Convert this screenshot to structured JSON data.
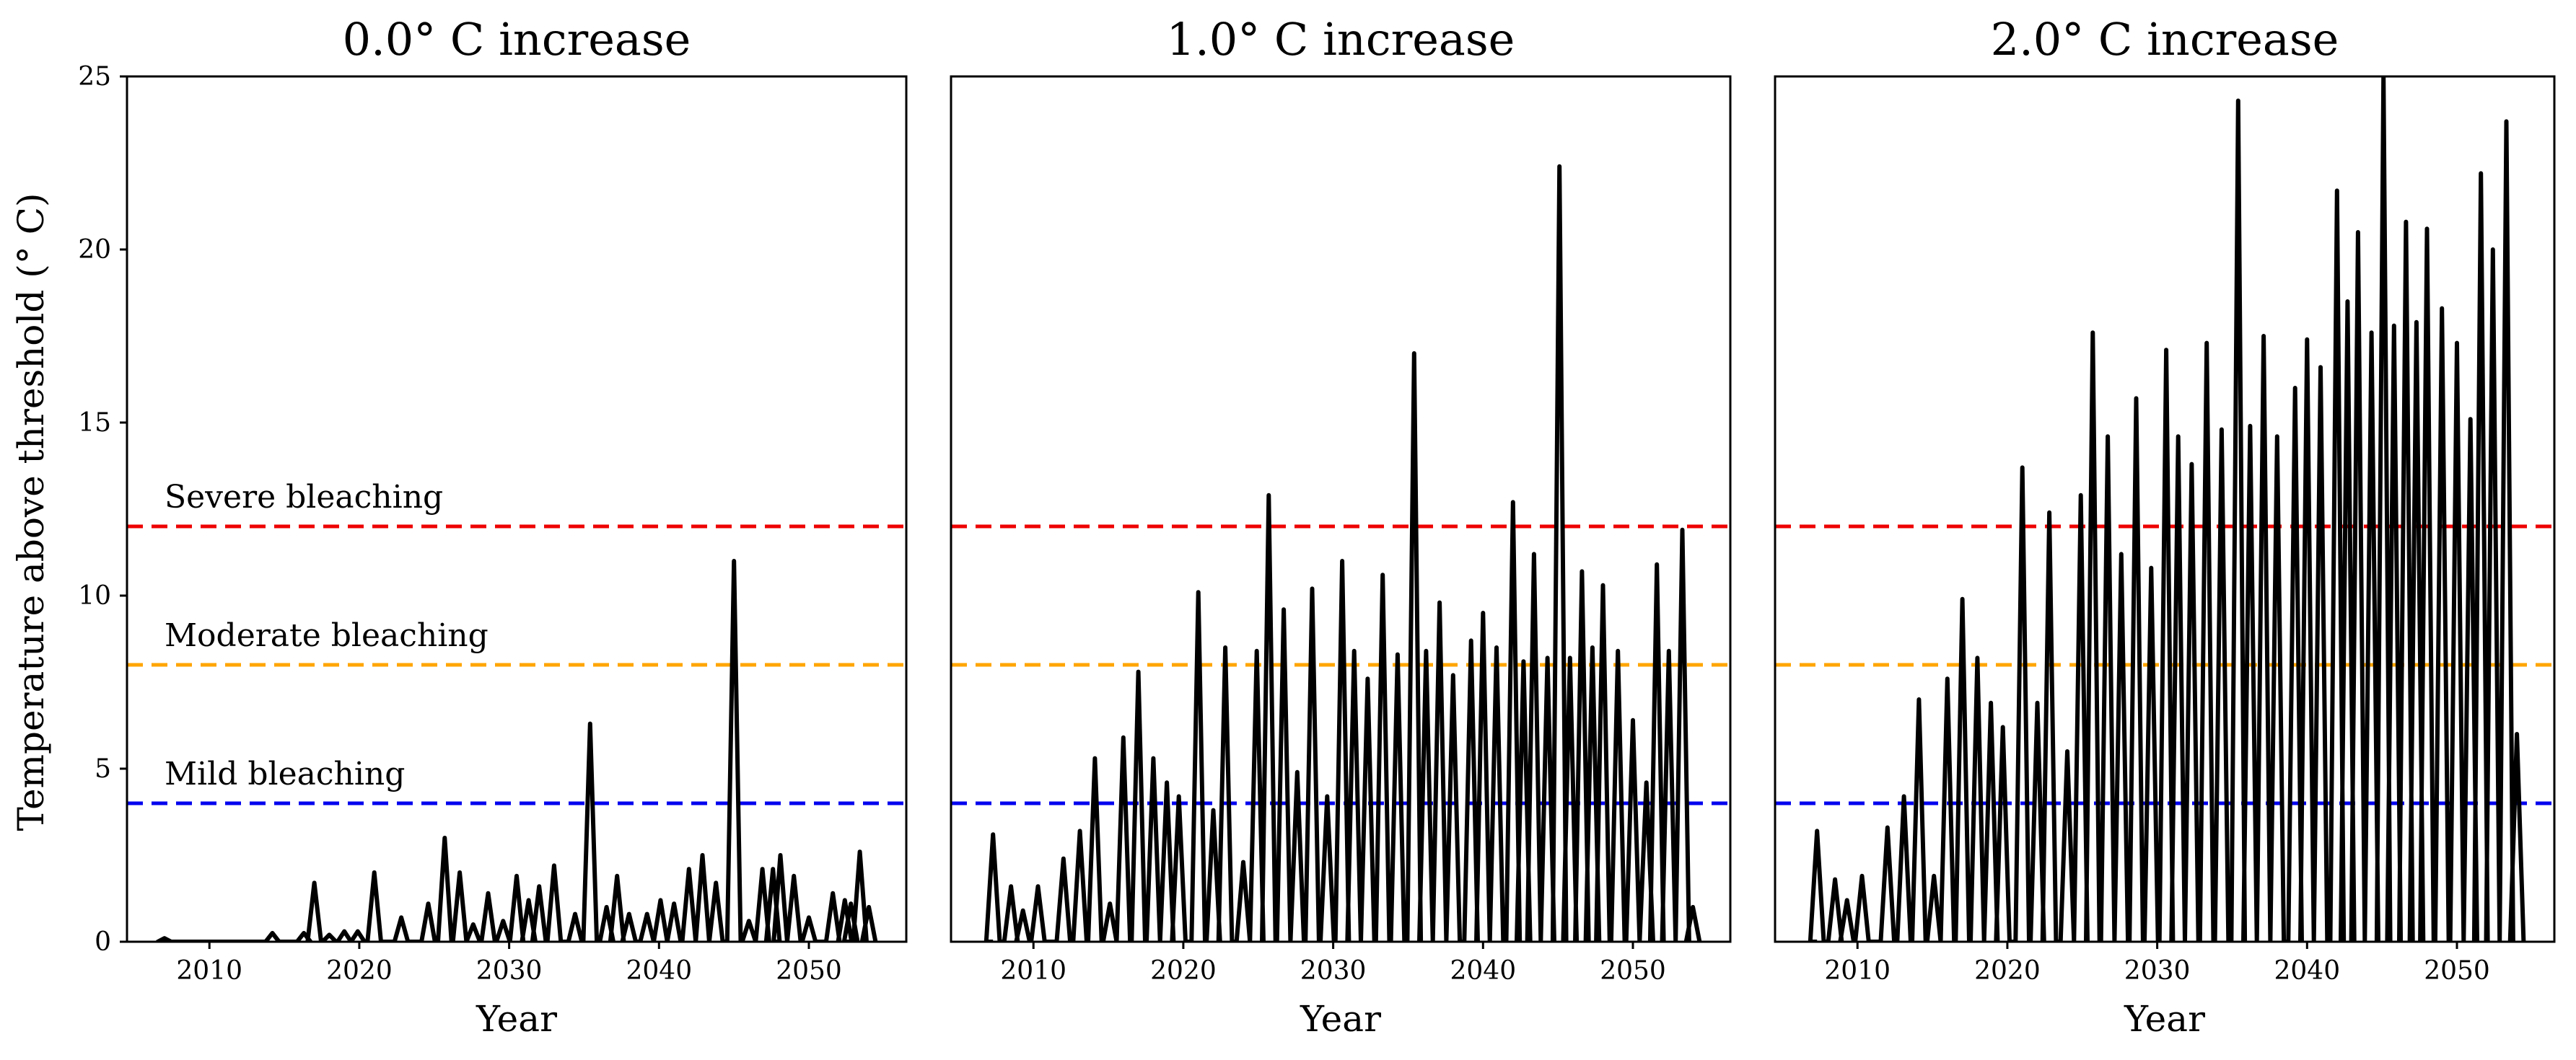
{
  "colors": {
    "mild": "#0000ee",
    "moderate": "#ffa500",
    "severe": "#ee0000",
    "series": "#000000"
  },
  "ylabel": "Temperature above threshold (° C)",
  "annotations": [
    {
      "key": "mild",
      "text": "Mild bleaching",
      "value": 4
    },
    {
      "key": "moderate",
      "text": "Moderate bleaching",
      "value": 8
    },
    {
      "key": "severe",
      "text": "Severe bleaching",
      "value": 12
    }
  ],
  "chart_data": [
    {
      "type": "line",
      "title": "0.0° C increase",
      "xlabel": "Year",
      "xlim": [
        2004.5,
        2056.5
      ],
      "ylim": [
        0,
        25
      ],
      "xticks": [
        2010,
        2020,
        2030,
        2040,
        2050
      ],
      "yticks": [
        0,
        5,
        10,
        15,
        20,
        25
      ],
      "thresholds": [
        4,
        8,
        12
      ],
      "series": [
        {
          "points": [
            [
              2007.0,
              0.1
            ],
            [
              2014.2,
              0.25
            ],
            [
              2016.3,
              0.25
            ],
            [
              2017.0,
              1.7
            ],
            [
              2018.0,
              0.2
            ],
            [
              2019.0,
              0.3
            ],
            [
              2019.9,
              0.3
            ],
            [
              2021.0,
              2.0
            ],
            [
              2022.8,
              0.7
            ],
            [
              2024.6,
              1.1
            ],
            [
              2025.7,
              3.0
            ],
            [
              2026.7,
              2.0
            ],
            [
              2027.6,
              0.5
            ],
            [
              2028.6,
              1.4
            ],
            [
              2029.6,
              0.6
            ],
            [
              2030.5,
              1.9
            ],
            [
              2031.3,
              1.2
            ],
            [
              2032.0,
              1.6
            ],
            [
              2033.0,
              2.2
            ],
            [
              2034.4,
              0.8
            ],
            [
              2035.4,
              6.3
            ],
            [
              2036.5,
              1.0
            ],
            [
              2037.2,
              1.9
            ],
            [
              2038.0,
              0.8
            ],
            [
              2039.2,
              0.8
            ],
            [
              2040.1,
              1.2
            ],
            [
              2041.0,
              1.1
            ],
            [
              2042.0,
              2.1
            ],
            [
              2042.9,
              2.5
            ],
            [
              2043.8,
              1.7
            ],
            [
              2045.0,
              11.0
            ],
            [
              2046.0,
              0.6
            ],
            [
              2046.9,
              2.1
            ],
            [
              2047.6,
              2.1
            ],
            [
              2048.1,
              2.5
            ],
            [
              2049.0,
              1.9
            ],
            [
              2050.0,
              0.7
            ],
            [
              2051.6,
              1.4
            ],
            [
              2052.4,
              1.2
            ],
            [
              2052.8,
              1.1
            ],
            [
              2053.4,
              2.6
            ],
            [
              2054.0,
              1.0
            ]
          ]
        }
      ]
    },
    {
      "type": "line",
      "title": "1.0° C increase",
      "xlabel": "Year",
      "xlim": [
        2004.5,
        2056.5
      ],
      "ylim": [
        0,
        25
      ],
      "xticks": [
        2010,
        2020,
        2030,
        2040,
        2050
      ],
      "yticks": [
        0,
        5,
        10,
        15,
        20,
        25
      ],
      "thresholds": [
        4,
        8,
        12
      ],
      "series": [
        {
          "points": [
            [
              2007.3,
              3.1
            ],
            [
              2008.5,
              1.6
            ],
            [
              2009.3,
              0.9
            ],
            [
              2010.3,
              1.6
            ],
            [
              2012.0,
              2.4
            ],
            [
              2013.1,
              3.2
            ],
            [
              2014.1,
              5.3
            ],
            [
              2015.1,
              1.1
            ],
            [
              2016.0,
              5.9
            ],
            [
              2017.0,
              7.8
            ],
            [
              2018.0,
              5.3
            ],
            [
              2018.9,
              4.6
            ],
            [
              2019.7,
              4.2
            ],
            [
              2021.0,
              10.1
            ],
            [
              2022.0,
              3.8
            ],
            [
              2022.8,
              8.5
            ],
            [
              2024.0,
              2.3
            ],
            [
              2024.9,
              8.4
            ],
            [
              2025.7,
              12.9
            ],
            [
              2026.7,
              9.6
            ],
            [
              2027.6,
              4.9
            ],
            [
              2028.6,
              10.2
            ],
            [
              2029.6,
              4.2
            ],
            [
              2030.6,
              11.0
            ],
            [
              2031.4,
              8.4
            ],
            [
              2032.3,
              7.6
            ],
            [
              2033.3,
              10.6
            ],
            [
              2034.3,
              8.3
            ],
            [
              2035.4,
              17.0
            ],
            [
              2036.2,
              8.4
            ],
            [
              2037.1,
              9.8
            ],
            [
              2038.0,
              7.7
            ],
            [
              2039.2,
              8.7
            ],
            [
              2040.0,
              9.5
            ],
            [
              2040.9,
              8.5
            ],
            [
              2042.0,
              12.7
            ],
            [
              2042.7,
              8.1
            ],
            [
              2043.4,
              11.2
            ],
            [
              2044.3,
              8.2
            ],
            [
              2045.1,
              22.4
            ],
            [
              2045.8,
              8.2
            ],
            [
              2046.6,
              10.7
            ],
            [
              2047.3,
              8.5
            ],
            [
              2048.0,
              10.3
            ],
            [
              2049.0,
              8.4
            ],
            [
              2050.0,
              6.4
            ],
            [
              2050.9,
              4.6
            ],
            [
              2051.6,
              10.9
            ],
            [
              2052.4,
              8.4
            ],
            [
              2053.3,
              11.9
            ],
            [
              2054.0,
              1.0
            ]
          ]
        }
      ]
    },
    {
      "type": "line",
      "title": "2.0° C increase",
      "xlabel": "Year",
      "xlim": [
        2004.5,
        2056.5
      ],
      "ylim": [
        0,
        25
      ],
      "xticks": [
        2010,
        2020,
        2030,
        2040,
        2050
      ],
      "yticks": [
        0,
        5,
        10,
        15,
        20,
        25
      ],
      "thresholds": [
        4,
        8,
        12
      ],
      "series": [
        {
          "points": [
            [
              2007.3,
              3.2
            ],
            [
              2008.5,
              1.8
            ],
            [
              2009.3,
              1.2
            ],
            [
              2010.3,
              1.9
            ],
            [
              2012.0,
              3.3
            ],
            [
              2013.1,
              4.2
            ],
            [
              2014.1,
              7.0
            ],
            [
              2015.1,
              1.9
            ],
            [
              2016.0,
              7.6
            ],
            [
              2017.0,
              9.9
            ],
            [
              2018.0,
              8.2
            ],
            [
              2018.9,
              6.9
            ],
            [
              2019.7,
              6.2
            ],
            [
              2021.0,
              13.7
            ],
            [
              2022.0,
              6.9
            ],
            [
              2022.8,
              12.4
            ],
            [
              2024.0,
              5.5
            ],
            [
              2024.9,
              12.9
            ],
            [
              2025.7,
              17.6
            ],
            [
              2026.7,
              14.6
            ],
            [
              2027.6,
              11.2
            ],
            [
              2028.6,
              15.7
            ],
            [
              2029.6,
              10.8
            ],
            [
              2030.6,
              17.1
            ],
            [
              2031.4,
              14.6
            ],
            [
              2032.3,
              13.8
            ],
            [
              2033.3,
              17.3
            ],
            [
              2034.3,
              14.8
            ],
            [
              2035.4,
              24.3
            ],
            [
              2036.2,
              14.9
            ],
            [
              2037.1,
              17.5
            ],
            [
              2038.0,
              14.6
            ],
            [
              2039.2,
              16.0
            ],
            [
              2040.0,
              17.4
            ],
            [
              2040.9,
              16.6
            ],
            [
              2042.0,
              21.7
            ],
            [
              2042.7,
              18.5
            ],
            [
              2043.4,
              20.5
            ],
            [
              2044.3,
              17.6
            ],
            [
              2045.1,
              25.0
            ],
            [
              2045.8,
              17.8
            ],
            [
              2046.6,
              20.8
            ],
            [
              2047.3,
              17.9
            ],
            [
              2048.0,
              20.6
            ],
            [
              2049.0,
              18.3
            ],
            [
              2050.0,
              17.3
            ],
            [
              2050.9,
              15.1
            ],
            [
              2051.6,
              22.2
            ],
            [
              2052.4,
              20.0
            ],
            [
              2053.3,
              23.7
            ],
            [
              2054.0,
              6.0
            ]
          ]
        }
      ]
    }
  ]
}
